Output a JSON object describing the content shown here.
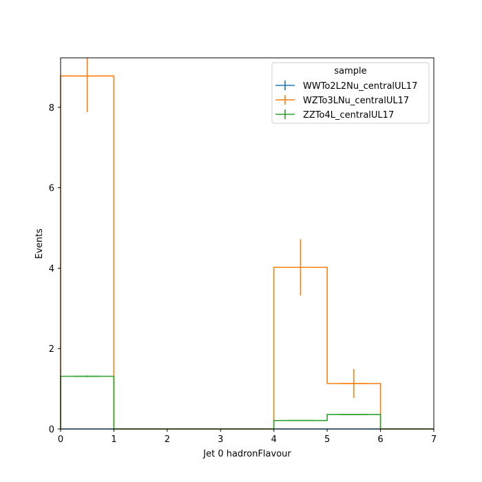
{
  "chart_data": {
    "type": "histogram-step",
    "xlabel": "Jet 0 hadronFlavour",
    "ylabel": "Events",
    "xlim": [
      0,
      7
    ],
    "ylim": [
      0,
      9.23
    ],
    "xticks": [
      "0",
      "1",
      "2",
      "3",
      "4",
      "5",
      "6",
      "7"
    ],
    "yticks": [
      "0",
      "2",
      "4",
      "6",
      "8"
    ],
    "bin_edges": [
      0,
      1,
      2,
      3,
      4,
      5,
      6,
      7
    ],
    "legend": {
      "title": "sample",
      "placement": "upper-right"
    },
    "series": [
      {
        "name": "WWTo2L2Nu_centralUL17",
        "color": "#1f77b4",
        "values": [
          0,
          0,
          0,
          0,
          0,
          0,
          0
        ],
        "errors": [
          0,
          0,
          0,
          0,
          0,
          0,
          0
        ]
      },
      {
        "name": "WZTo3LNu_centralUL17",
        "color": "#ff7f0e",
        "values": [
          8.78,
          0,
          0,
          0,
          4.02,
          1.13,
          0
        ],
        "errors": [
          0.9,
          0,
          0,
          0,
          0.7,
          0.36,
          0
        ]
      },
      {
        "name": "ZZTo4L_centralUL17",
        "color": "#2ca02c",
        "values": [
          1.31,
          0,
          0,
          0,
          0.21,
          0.36,
          0
        ],
        "errors": [
          0.02,
          0,
          0,
          0,
          0.01,
          0.01,
          0
        ]
      }
    ]
  }
}
